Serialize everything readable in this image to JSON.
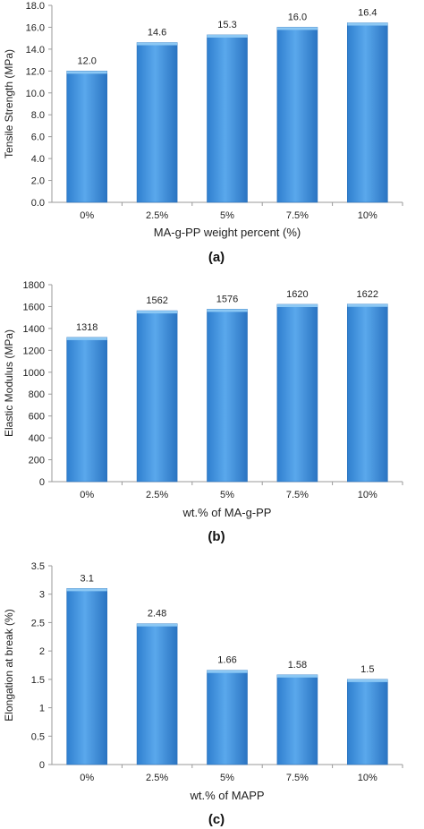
{
  "chart_data": [
    {
      "type": "bar",
      "panel_label": "(a)",
      "categories": [
        "0%",
        "2.5%",
        "5%",
        "7.5%",
        "10%"
      ],
      "values": [
        12.0,
        14.6,
        15.3,
        16.0,
        16.4
      ],
      "value_labels": [
        "12.0",
        "14.6",
        "15.3",
        "16.0",
        "16.4"
      ],
      "xlabel": "MA-g-PP weight percent (%)",
      "ylabel": "Tensile Strength (MPa)",
      "ylim": [
        0,
        18
      ],
      "yticks": [
        "0.0",
        "2.0",
        "4.0",
        "6.0",
        "8.0",
        "10.0",
        "12.0",
        "14.0",
        "16.0",
        "18.0"
      ],
      "grid": false,
      "bar_color": "#3d8fd9"
    },
    {
      "type": "bar",
      "panel_label": "(b)",
      "categories": [
        "0%",
        "2.5%",
        "5%",
        "7.5%",
        "10%"
      ],
      "values": [
        1318,
        1562,
        1576,
        1620,
        1622
      ],
      "value_labels": [
        "1318",
        "1562",
        "1576",
        "1620",
        "1622"
      ],
      "xlabel": "wt.% of MA-g-PP",
      "ylabel": "Elastic Modulus (MPa)",
      "ylim": [
        0,
        1800
      ],
      "yticks": [
        "0",
        "200",
        "400",
        "600",
        "800",
        "1000",
        "1200",
        "1400",
        "1600",
        "1800"
      ],
      "grid": false,
      "bar_color": "#3d8fd9"
    },
    {
      "type": "bar",
      "panel_label": "(c)",
      "categories": [
        "0%",
        "2.5%",
        "5%",
        "7.5%",
        "10%"
      ],
      "values": [
        3.1,
        2.48,
        1.66,
        1.58,
        1.5
      ],
      "value_labels": [
        "3.1",
        "2.48",
        "1.66",
        "1.58",
        "1.5"
      ],
      "xlabel": "wt.% of MAPP",
      "ylabel": "Elongation at break (%)",
      "ylim": [
        0,
        3.5
      ],
      "yticks": [
        "0",
        "0.5",
        "1",
        "1.5",
        "2",
        "2.5",
        "3",
        "3.5"
      ],
      "grid": false,
      "bar_color": "#3d8fd9"
    }
  ]
}
